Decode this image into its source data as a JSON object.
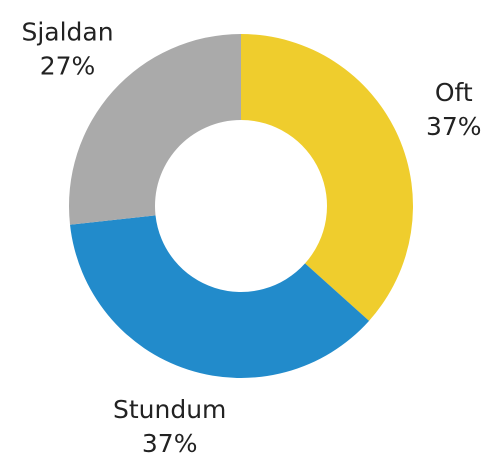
{
  "chart_data": {
    "type": "donut",
    "categories": [
      "Oft",
      "Stundum",
      "Sjaldan"
    ],
    "values": [
      37,
      37,
      27
    ],
    "value_labels": [
      "37%",
      "37%",
      "27%"
    ],
    "colors": [
      "#efcd2d",
      "#228bcb",
      "#aaaaaa"
    ]
  }
}
